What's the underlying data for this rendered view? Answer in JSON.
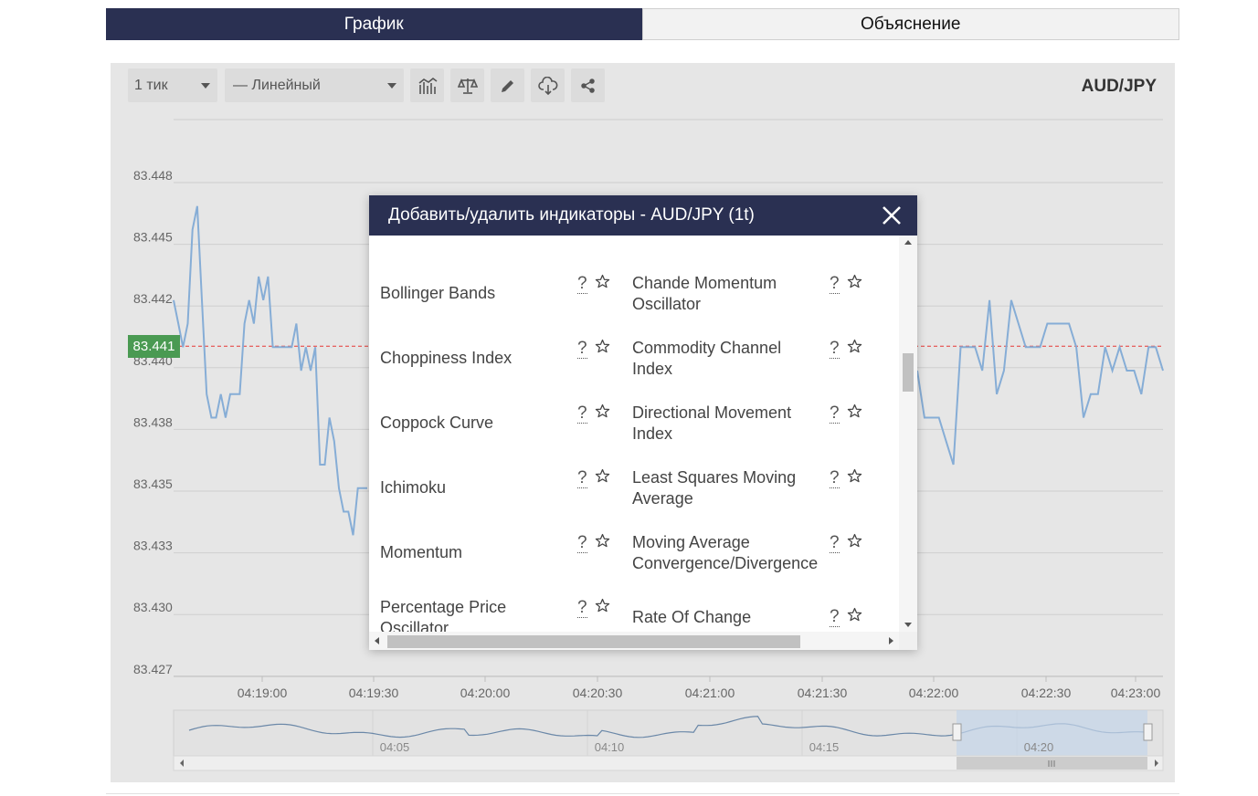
{
  "tabs": [
    {
      "label": "График"
    },
    {
      "label": "Объяснение"
    }
  ],
  "toolbar": {
    "interval": "1 тик",
    "chart_type": "— Линейный",
    "icons": [
      "indicators-icon",
      "comparison-scale-icon",
      "pencil-icon",
      "cloud-download-icon",
      "share-icon"
    ]
  },
  "instrument": "AUD/JPY",
  "current_price": "83.441",
  "colors": {
    "accent": "#2a3052",
    "line": "#86add6",
    "price_tag": "#4a9a52",
    "price_line": "#e53935",
    "navigator_selection": "#c5d6ea"
  },
  "chart_data": {
    "type": "line",
    "x_ticks": [
      "04:19:00",
      "04:19:30",
      "04:20:00",
      "04:20:30",
      "04:21:00",
      "04:21:30",
      "04:22:00",
      "04:22:30",
      "04:23:00"
    ],
    "y_ticks": [
      "83.448",
      "83.445",
      "83.442",
      "83.440",
      "83.438",
      "83.435",
      "83.433",
      "83.430",
      "83.427"
    ],
    "ylim": [
      83.427,
      83.448
    ],
    "current_price": 83.441,
    "series_visible_left": [
      83.443,
      83.442,
      83.441,
      83.442,
      83.446,
      83.447,
      83.443,
      83.439,
      83.438,
      83.438,
      83.439,
      83.438,
      83.439,
      83.439,
      83.439,
      83.442,
      83.443,
      83.442,
      83.444,
      83.443,
      83.444,
      83.441,
      83.441,
      83.441,
      83.441,
      83.441,
      83.442,
      83.44,
      83.441,
      83.44,
      83.441,
      83.436,
      83.436,
      83.438,
      83.437,
      83.435,
      83.434,
      83.434,
      83.433,
      83.435,
      83.435,
      83.435
    ],
    "series_visible_right": [
      83.44,
      83.438,
      83.438,
      83.438,
      83.437,
      83.436,
      83.441,
      83.441,
      83.441,
      83.44,
      83.443,
      83.439,
      83.44,
      83.443,
      83.442,
      83.441,
      83.441,
      83.441,
      83.442,
      83.442,
      83.442,
      83.442,
      83.441,
      83.438,
      83.439,
      83.439,
      83.441,
      83.44,
      83.441,
      83.44,
      83.44,
      83.439,
      83.441,
      83.441,
      83.44
    ],
    "navigator_labels": [
      "04:05",
      "04:10",
      "04:15",
      "04:20"
    ],
    "grid": true
  },
  "modal": {
    "title": "Добавить/удалить индикаторы - AUD/JPY (1t)",
    "help_mark": "?",
    "rows": [
      {
        "left": [
          "Bollinger Bands"
        ],
        "right": [
          "Chande Momentum",
          "Oscillator"
        ]
      },
      {
        "left": [
          "Choppiness Index"
        ],
        "right": [
          "Commodity Channel",
          "Index"
        ]
      },
      {
        "left": [
          "Coppock Curve"
        ],
        "right": [
          "Directional Movement",
          "Index"
        ]
      },
      {
        "left": [
          "Ichimoku"
        ],
        "right": [
          "Least Squares Moving",
          "Average"
        ]
      },
      {
        "left": [
          "Momentum"
        ],
        "right": [
          "Moving Average",
          "Convergence/Divergence"
        ]
      },
      {
        "left": [
          "Percentage Price",
          "Oscillator"
        ],
        "right": [
          "Rate Of Change"
        ]
      }
    ]
  }
}
